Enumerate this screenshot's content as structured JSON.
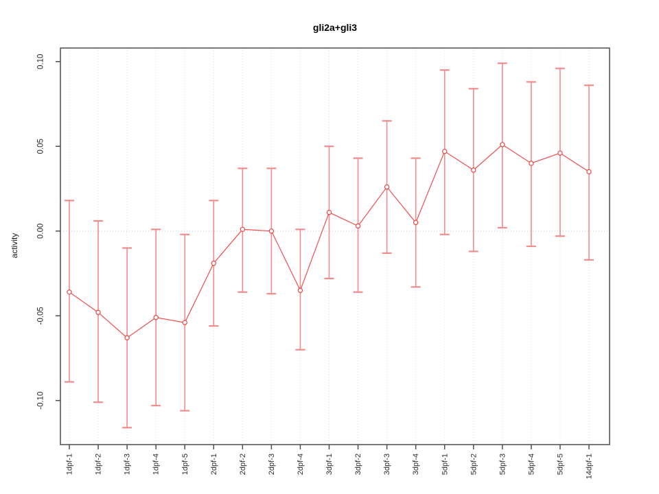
{
  "chart_data": {
    "type": "line",
    "title": "gli2a+gli3",
    "ylabel": "activity",
    "xlabel": "",
    "legend": "none",
    "grid": "dotted vertical line at each category; dotted horizontal line at 0",
    "categories": [
      "1dpf-1",
      "1dpf-2",
      "1dpf-3",
      "1dpf-4",
      "1dpf-5",
      "2dpf-1",
      "2dpf-2",
      "2dpf-3",
      "2dpf-4",
      "3dpf-1",
      "3dpf-2",
      "3dpf-3",
      "3dpf-4",
      "5dpf-1",
      "5dpf-2",
      "5dpf-3",
      "5dpf-4",
      "5dpf-5",
      "14dpf-1"
    ],
    "series": [
      {
        "name": "activity",
        "marker": "open-circle",
        "values": [
          -0.036,
          -0.048,
          -0.063,
          -0.051,
          -0.054,
          -0.019,
          0.001,
          0.0,
          -0.035,
          0.011,
          0.003,
          0.026,
          0.005,
          0.047,
          0.036,
          0.051,
          0.04,
          0.046,
          0.035
        ],
        "error_upper": [
          0.018,
          0.006,
          -0.01,
          0.001,
          -0.002,
          0.018,
          0.037,
          0.037,
          0.001,
          0.05,
          0.043,
          0.065,
          0.043,
          0.095,
          0.084,
          0.099,
          0.088,
          0.096,
          0.086
        ],
        "error_lower": [
          -0.089,
          -0.101,
          -0.116,
          -0.103,
          -0.106,
          -0.056,
          -0.036,
          -0.037,
          -0.07,
          -0.028,
          -0.036,
          -0.013,
          -0.033,
          -0.002,
          -0.012,
          0.002,
          -0.009,
          -0.003,
          -0.017
        ]
      }
    ],
    "ylim": [
      -0.126,
      0.108
    ],
    "yticks": [
      -0.1,
      -0.05,
      0.0,
      0.05,
      0.1
    ],
    "ytick_labels": [
      "-0.10",
      "-0.05",
      "0.00",
      "0.05",
      "0.10"
    ],
    "colors": {
      "series_line": "#ee4d4d",
      "marker_stroke": "#e84545",
      "error_bar": "#f28b8b",
      "axis": "#4d4d4d",
      "grid_line": "#d9d9d9",
      "zero_line": "#cccccc",
      "tick_text": "#2b2b2b",
      "background": "#ffffff"
    }
  }
}
